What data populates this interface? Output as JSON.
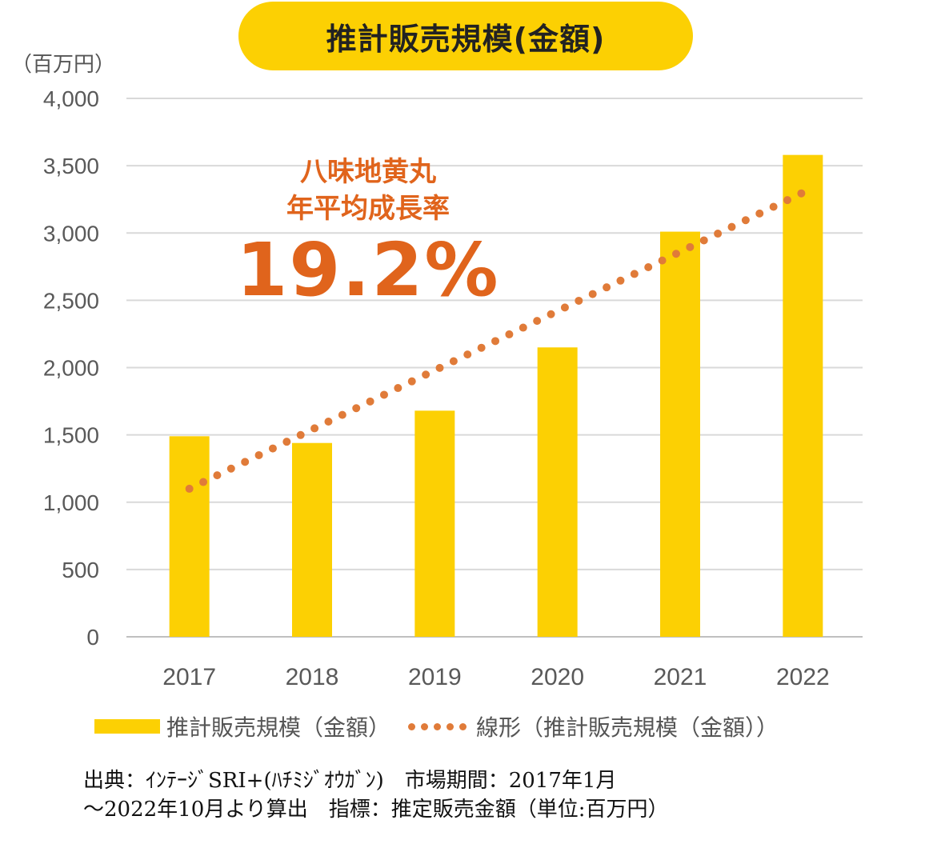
{
  "chart_data": {
    "type": "bar",
    "title": "推計販売規模(金額)",
    "ylabel": "（百万円）",
    "xlabel": "",
    "categories": [
      "2017",
      "2018",
      "2019",
      "2020",
      "2021",
      "2022"
    ],
    "series": [
      {
        "name": "推計販売規模（金額）",
        "type": "bar",
        "color": "#fcd003",
        "values": [
          1490,
          1440,
          1680,
          2150,
          3010,
          3580
        ]
      },
      {
        "name": "線形（推計販売規模（金額））",
        "type": "trendline-dotted",
        "color": "#e07b39",
        "values": [
          1100,
          1540,
          1980,
          2420,
          2860,
          3300
        ]
      }
    ],
    "ylim": [
      0,
      4000
    ],
    "yticks": [
      0,
      500,
      1000,
      1500,
      2000,
      2500,
      3000,
      3500,
      4000
    ],
    "ytick_labels": [
      "0",
      "500",
      "1,000",
      "1,500",
      "2,000",
      "2,500",
      "3,000",
      "3,500",
      "4,000"
    ],
    "grid": true,
    "legend_position": "bottom"
  },
  "callout": {
    "line1": "八味地黄丸",
    "line2": "年平均成長率",
    "value": "19.2%"
  },
  "legend": {
    "bar_label": "推計販売規模（金額）",
    "trend_label": "線形（推計販売規模（金額））"
  },
  "source": {
    "line1": "出典：ｲﾝﾃｰｼﾞSRI+(ﾊﾁﾐｼﾞｵｳｶﾞﾝ)　市場期間：2017年1月",
    "line2": "～2022年10月より算出　指標：推定販売金額（単位:百万円）"
  },
  "colors": {
    "accent_yellow": "#fcd003",
    "trend_orange": "#e07b39",
    "callout_orange": "#e0641c",
    "grid": "#d9d9d9"
  }
}
